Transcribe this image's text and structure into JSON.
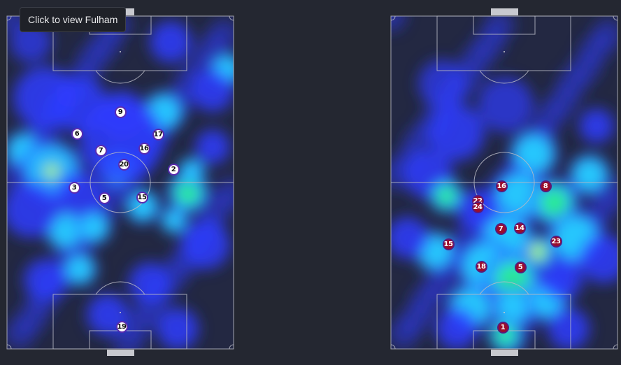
{
  "tooltip": "Click to view Fulham",
  "teams": [
    {
      "name": "Fulham",
      "marker_color": "#ffffff",
      "marker_border": "#5a2bb0",
      "players": [
        "9",
        "6",
        "17",
        "7",
        "16",
        "20",
        "2",
        "3",
        "5",
        "15",
        "19"
      ]
    },
    {
      "marker_color": "#9b0d2b",
      "marker_border": "#5b1a7a",
      "players": [
        "16",
        "8",
        "22",
        "24",
        "7",
        "14",
        "15",
        "23",
        "18",
        "5",
        "1"
      ]
    }
  ],
  "heatmap_colors": [
    "#1a1f6e",
    "#2e3cff",
    "#27e0ff",
    "#2cf07a",
    "#f0ff30"
  ]
}
